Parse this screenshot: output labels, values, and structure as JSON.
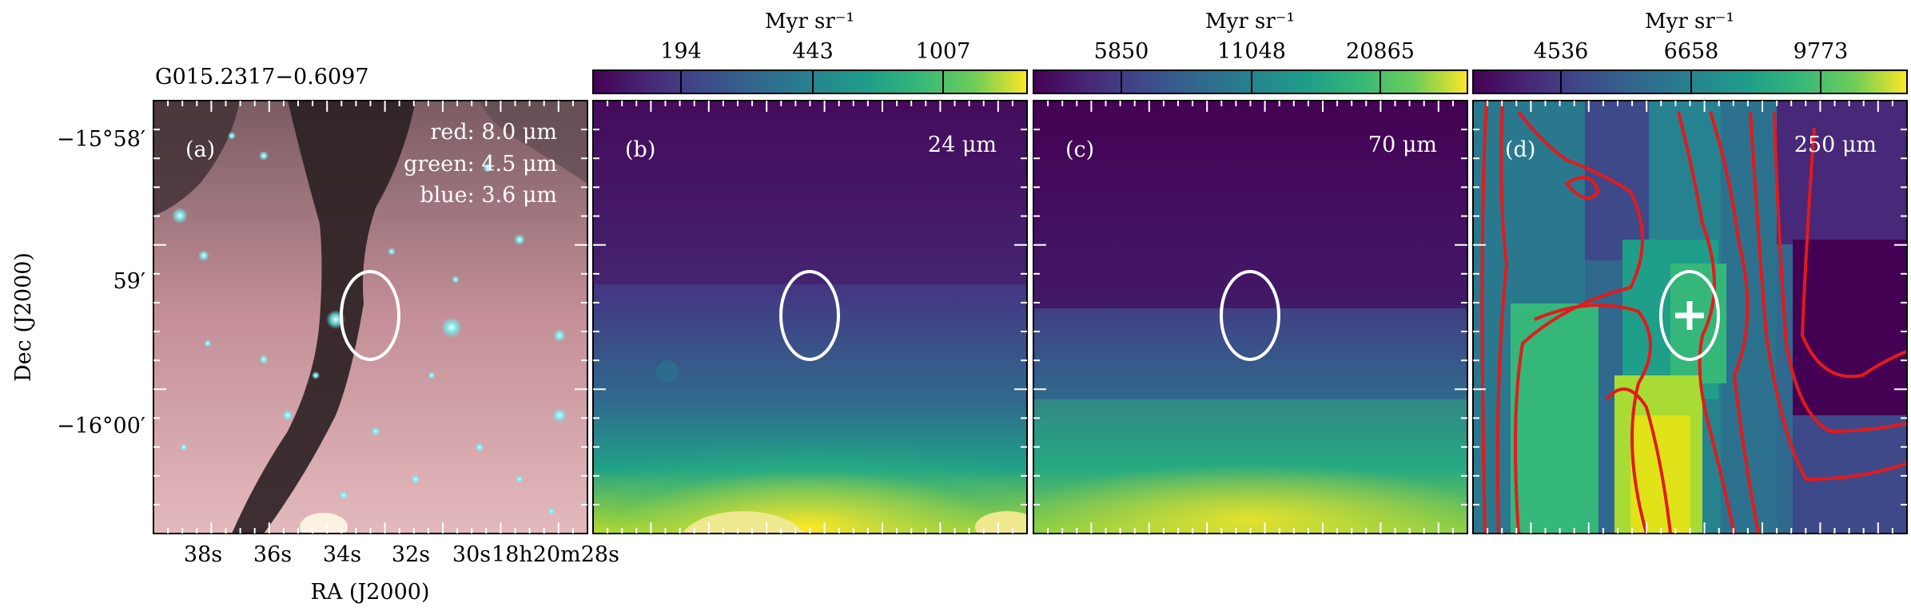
{
  "source_name": "G015.2317−0.6097",
  "axes": {
    "xlabel": "RA (J2000)",
    "ylabel": "Dec (J2000)",
    "ra_ticks": [
      "38s",
      "36s",
      "34s",
      "32s",
      "30s",
      "18h20m28s"
    ],
    "dec_ticks": [
      "−15°58′",
      "59′",
      "−16°00′"
    ]
  },
  "panels": [
    {
      "id": "a",
      "label": "(a)",
      "legend": [
        "red: 8.0 μm",
        "green: 4.5 μm",
        "blue: 3.6 μm"
      ]
    },
    {
      "id": "b",
      "label": "(b)",
      "band": "24 μm",
      "colorbar": {
        "unit": "Myr sr⁻¹",
        "ticks": [
          "194",
          "443",
          "1007"
        ]
      }
    },
    {
      "id": "c",
      "label": "(c)",
      "band": "70 μm",
      "colorbar": {
        "unit": "Myr sr⁻¹",
        "ticks": [
          "5850",
          "11048",
          "20865"
        ]
      }
    },
    {
      "id": "d",
      "label": "(d)",
      "band": "250 μm",
      "colorbar": {
        "unit": "Myr sr⁻¹",
        "ticks": [
          "4536",
          "6658",
          "9773"
        ]
      }
    }
  ],
  "colors": {
    "viridis_dark": "#440154",
    "viridis_mid": "#21918c",
    "viridis_bright": "#fde725",
    "contour": "#e31a1c",
    "marker": "#ffffff",
    "rgb_background": "#c9929b"
  }
}
